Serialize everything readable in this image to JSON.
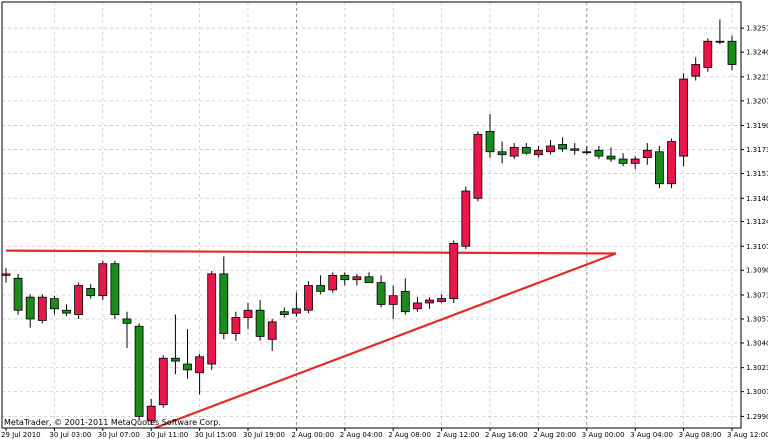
{
  "copyright": "MetaTrader, © 2001-2011 MetaQuotes Software Corp.",
  "chart_data": {
    "type": "candlestick",
    "title": "",
    "xlabel": "",
    "ylabel": "",
    "ylim": [
      1.2982,
      1.3275
    ],
    "y_ticks": [
      "1.32570",
      "1.32405",
      "1.32235",
      "1.32070",
      "1.31900",
      "1.31735",
      "1.31570",
      "1.31400",
      "1.31240",
      "1.31070",
      "1.30905",
      "1.30735",
      "1.30570",
      "1.30405",
      "1.30235",
      "1.30070",
      "1.29900"
    ],
    "x_ticks": [
      "29 Jul 2010",
      "30 Jul 03:00",
      "30 Jul 07:00",
      "30 Jul 11:00",
      "30 Jul 15:00",
      "30 Jul 19:00",
      "2 Aug 00:00",
      "2 Aug 04:00",
      "2 Aug 08:00",
      "2 Aug 12:00",
      "2 Aug 16:00",
      "2 Aug 20:00",
      "3 Aug 00:00",
      "3 Aug 04:00",
      "3 Aug 08:00",
      "3 Aug 12:00"
    ],
    "grid": true,
    "bull_color": "#e8174a",
    "bear_color": "#1b8c1b",
    "candles": [
      {
        "o": 1.3087,
        "h": 1.3092,
        "l": 1.3082,
        "c": 1.3088
      },
      {
        "o": 1.3085,
        "h": 1.3088,
        "l": 1.306,
        "c": 1.3063
      },
      {
        "o": 1.3072,
        "h": 1.3074,
        "l": 1.3051,
        "c": 1.3057
      },
      {
        "o": 1.3056,
        "h": 1.3074,
        "l": 1.3054,
        "c": 1.3072
      },
      {
        "o": 1.3071,
        "h": 1.3073,
        "l": 1.306,
        "c": 1.3064
      },
      {
        "o": 1.3063,
        "h": 1.3067,
        "l": 1.3059,
        "c": 1.3061
      },
      {
        "o": 1.306,
        "h": 1.3082,
        "l": 1.3057,
        "c": 1.308
      },
      {
        "o": 1.3078,
        "h": 1.3081,
        "l": 1.3071,
        "c": 1.3073
      },
      {
        "o": 1.3073,
        "h": 1.3097,
        "l": 1.307,
        "c": 1.3095
      },
      {
        "o": 1.3095,
        "h": 1.3097,
        "l": 1.3057,
        "c": 1.306
      },
      {
        "o": 1.3057,
        "h": 1.3062,
        "l": 1.3037,
        "c": 1.3054
      },
      {
        "o": 1.3052,
        "h": 1.3054,
        "l": 1.2987,
        "c": 1.299
      },
      {
        "o": 1.2987,
        "h": 1.3002,
        "l": 1.2984,
        "c": 1.2997
      },
      {
        "o": 1.2998,
        "h": 1.3032,
        "l": 1.2996,
        "c": 1.303
      },
      {
        "o": 1.303,
        "h": 1.306,
        "l": 1.3019,
        "c": 1.3028
      },
      {
        "o": 1.3026,
        "h": 1.305,
        "l": 1.3016,
        "c": 1.3022
      },
      {
        "o": 1.302,
        "h": 1.3033,
        "l": 1.3005,
        "c": 1.3031
      },
      {
        "o": 1.3026,
        "h": 1.309,
        "l": 1.3022,
        "c": 1.3088
      },
      {
        "o": 1.3088,
        "h": 1.31,
        "l": 1.3043,
        "c": 1.3047
      },
      {
        "o": 1.3047,
        "h": 1.3062,
        "l": 1.3042,
        "c": 1.3058
      },
      {
        "o": 1.3058,
        "h": 1.3068,
        "l": 1.305,
        "c": 1.3063
      },
      {
        "o": 1.3063,
        "h": 1.307,
        "l": 1.3042,
        "c": 1.3045
      },
      {
        "o": 1.3043,
        "h": 1.3057,
        "l": 1.3035,
        "c": 1.3055
      },
      {
        "o": 1.3062,
        "h": 1.3065,
        "l": 1.3058,
        "c": 1.306
      },
      {
        "o": 1.3061,
        "h": 1.3075,
        "l": 1.3059,
        "c": 1.3064
      },
      {
        "o": 1.3063,
        "h": 1.3083,
        "l": 1.3061,
        "c": 1.308
      },
      {
        "o": 1.308,
        "h": 1.3087,
        "l": 1.3074,
        "c": 1.3076
      },
      {
        "o": 1.3077,
        "h": 1.3089,
        "l": 1.3075,
        "c": 1.3087
      },
      {
        "o": 1.3087,
        "h": 1.3089,
        "l": 1.308,
        "c": 1.3084
      },
      {
        "o": 1.3084,
        "h": 1.3088,
        "l": 1.308,
        "c": 1.3086
      },
      {
        "o": 1.3086,
        "h": 1.3089,
        "l": 1.3082,
        "c": 1.3082
      },
      {
        "o": 1.3082,
        "h": 1.3087,
        "l": 1.3065,
        "c": 1.3067
      },
      {
        "o": 1.3067,
        "h": 1.308,
        "l": 1.3057,
        "c": 1.3073
      },
      {
        "o": 1.3076,
        "h": 1.3085,
        "l": 1.306,
        "c": 1.3062
      },
      {
        "o": 1.3064,
        "h": 1.3072,
        "l": 1.3062,
        "c": 1.3068
      },
      {
        "o": 1.3068,
        "h": 1.3072,
        "l": 1.3064,
        "c": 1.307
      },
      {
        "o": 1.3069,
        "h": 1.3074,
        "l": 1.3068,
        "c": 1.3071
      },
      {
        "o": 1.3071,
        "h": 1.3111,
        "l": 1.3068,
        "c": 1.3109
      },
      {
        "o": 1.3107,
        "h": 1.3148,
        "l": 1.3105,
        "c": 1.3145
      },
      {
        "o": 1.314,
        "h": 1.3186,
        "l": 1.3138,
        "c": 1.3184
      },
      {
        "o": 1.3186,
        "h": 1.3198,
        "l": 1.3168,
        "c": 1.3172
      },
      {
        "o": 1.3172,
        "h": 1.3179,
        "l": 1.3164,
        "c": 1.317
      },
      {
        "o": 1.3169,
        "h": 1.3178,
        "l": 1.3167,
        "c": 1.3175
      },
      {
        "o": 1.3175,
        "h": 1.3178,
        "l": 1.317,
        "c": 1.3171
      },
      {
        "o": 1.317,
        "h": 1.3176,
        "l": 1.3168,
        "c": 1.3173
      },
      {
        "o": 1.3172,
        "h": 1.318,
        "l": 1.317,
        "c": 1.3176
      },
      {
        "o": 1.3177,
        "h": 1.3182,
        "l": 1.3172,
        "c": 1.3174
      },
      {
        "o": 1.3174,
        "h": 1.3178,
        "l": 1.317,
        "c": 1.3173
      },
      {
        "o": 1.3172,
        "h": 1.3176,
        "l": 1.317,
        "c": 1.3172
      },
      {
        "o": 1.3173,
        "h": 1.3176,
        "l": 1.3167,
        "c": 1.3169
      },
      {
        "o": 1.3169,
        "h": 1.3175,
        "l": 1.3165,
        "c": 1.3167
      },
      {
        "o": 1.3167,
        "h": 1.3171,
        "l": 1.3162,
        "c": 1.3164
      },
      {
        "o": 1.3164,
        "h": 1.3169,
        "l": 1.316,
        "c": 1.3167
      },
      {
        "o": 1.3168,
        "h": 1.3178,
        "l": 1.3163,
        "c": 1.3173
      },
      {
        "o": 1.3172,
        "h": 1.3176,
        "l": 1.3147,
        "c": 1.315
      },
      {
        "o": 1.315,
        "h": 1.3181,
        "l": 1.3147,
        "c": 1.3179
      },
      {
        "o": 1.3169,
        "h": 1.3226,
        "l": 1.3162,
        "c": 1.3222
      },
      {
        "o": 1.3224,
        "h": 1.3237,
        "l": 1.3221,
        "c": 1.3232
      },
      {
        "o": 1.323,
        "h": 1.325,
        "l": 1.3227,
        "c": 1.3248
      },
      {
        "o": 1.3248,
        "h": 1.3263,
        "l": 1.3246,
        "c": 1.3248
      },
      {
        "o": 1.3248,
        "h": 1.3252,
        "l": 1.3228,
        "c": 1.3232
      }
    ],
    "trend_lines": [
      {
        "from": {
          "candle": 0,
          "price": 1.3104
        },
        "to": {
          "candle": 50.4,
          "price": 1.3102
        }
      },
      {
        "from": {
          "candle": 12.3,
          "price": 1.2982
        },
        "to": {
          "candle": 50.4,
          "price": 1.3102
        }
      }
    ]
  }
}
